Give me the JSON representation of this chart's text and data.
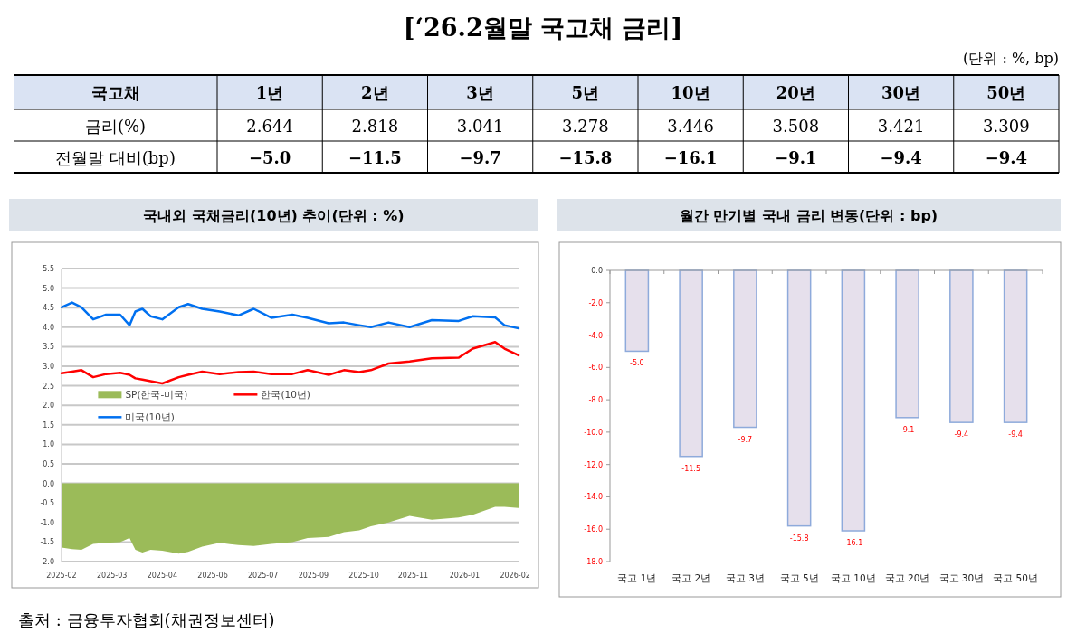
{
  "chart_data": [
    {
      "type": "other",
      "title": "[‘26.2월말 국고채 금리]",
      "subtitle": "(단위 : %, bp)",
      "xlabel": "국고채",
      "categories": [
        "1년",
        "2년",
        "3년",
        "5년",
        "10년",
        "20년",
        "30년",
        "50년"
      ],
      "series": [
        {
          "name": "금리(%)",
          "values": [
            2.644,
            2.818,
            3.041,
            3.278,
            3.446,
            3.508,
            3.421,
            3.309
          ],
          "value_labels": [
            "2.644",
            "2.818",
            "3.041",
            "3.278",
            "3.446",
            "3.508",
            "3.421",
            "3.309"
          ]
        },
        {
          "name": "전월말 대비(bp)",
          "values": [
            -5.0,
            -11.5,
            -9.7,
            -15.8,
            -16.1,
            -9.1,
            -9.4,
            -9.4
          ],
          "value_labels": [
            "−5.0",
            "−11.5",
            "−9.7",
            "−15.8",
            "−16.1",
            "−9.1",
            "−9.4",
            "−9.4"
          ]
        }
      ],
      "annotations": [
        "출처 : 금융투자협회(채권정보센터)"
      ]
    },
    {
      "type": "line",
      "title": "국내외 국채금리(10년) 추이(단위 : %)",
      "x": [
        "2025-02-03",
        "2025-02-12",
        "2025-02-20",
        "2025-03-02",
        "2025-03-13",
        "2025-03-25",
        "2025-04-02",
        "2025-04-07",
        "2025-04-13",
        "2025-04-20",
        "2025-04-30",
        "2025-05-14",
        "2025-05-22",
        "2025-06-03",
        "2025-06-18",
        "2025-07-04",
        "2025-07-17",
        "2025-08-01",
        "2025-08-19",
        "2025-09-01",
        "2025-09-19",
        "2025-10-02",
        "2025-10-15",
        "2025-10-25",
        "2025-11-09",
        "2025-11-27",
        "2025-12-16",
        "2026-01-08",
        "2026-01-20",
        "2026-02-08",
        "2026-02-16",
        "2026-02-28"
      ],
      "series": [
        {
          "name": "SP(한국-미국)",
          "type": "area",
          "color": "#9bbb59",
          "values": [
            -1.64,
            -1.68,
            -1.7,
            -1.55,
            -1.52,
            -1.5,
            -1.4,
            -1.7,
            -1.77,
            -1.7,
            -1.72,
            -1.8,
            -1.75,
            -1.62,
            -1.52,
            -1.58,
            -1.6,
            -1.55,
            -1.5,
            -1.4,
            -1.37,
            -1.25,
            -1.2,
            -1.1,
            -1.0,
            -0.83,
            -0.93,
            -0.87,
            -0.8,
            -0.6,
            -0.6,
            -0.63
          ]
        },
        {
          "name": "한국(10년)",
          "type": "line",
          "color": "#ff0000",
          "values": [
            2.82,
            2.86,
            2.9,
            2.72,
            2.8,
            2.83,
            2.78,
            2.69,
            2.66,
            2.62,
            2.56,
            2.72,
            2.78,
            2.86,
            2.8,
            2.85,
            2.86,
            2.8,
            2.8,
            2.9,
            2.78,
            2.9,
            2.85,
            2.9,
            3.07,
            3.12,
            3.2,
            3.22,
            3.45,
            3.62,
            3.45,
            3.28
          ]
        },
        {
          "name": "미국(10년)",
          "type": "line",
          "color": "#0070f0",
          "values": [
            4.51,
            4.63,
            4.51,
            4.2,
            4.32,
            4.32,
            4.05,
            4.4,
            4.47,
            4.28,
            4.2,
            4.51,
            4.59,
            4.47,
            4.4,
            4.3,
            4.47,
            4.24,
            4.32,
            4.24,
            4.1,
            4.12,
            4.05,
            4.0,
            4.12,
            4.0,
            4.18,
            4.16,
            4.28,
            4.25,
            4.05,
            3.97
          ]
        }
      ],
      "xlim": [
        "2025-02-03",
        "2026-02-28"
      ],
      "xticks": [
        {
          "value": "2025-02-03",
          "label": "2025-02"
        },
        {
          "value": "2025-03-18",
          "label": "2025-03"
        },
        {
          "value": "2025-04-30",
          "label": "2025-04"
        },
        {
          "value": "2025-06-12",
          "label": "2025-06"
        },
        {
          "value": "2025-07-25",
          "label": "2025-07"
        },
        {
          "value": "2025-09-06",
          "label": "2025-09"
        },
        {
          "value": "2025-10-19",
          "label": "2025-10"
        },
        {
          "value": "2025-11-30",
          "label": "2025-11"
        },
        {
          "value": "2026-01-13",
          "label": "2026-01"
        },
        {
          "value": "2026-02-25",
          "label": "2026-02"
        }
      ],
      "ylim": [
        -2,
        5.5
      ],
      "yticks": [
        {
          "value": -2,
          "label": "-2.0"
        },
        {
          "value": -1.5,
          "label": "-1.5"
        },
        {
          "value": -1,
          "label": "-1.0"
        },
        {
          "value": -0.5,
          "label": "-0.5"
        },
        {
          "value": 0,
          "label": "0.0"
        },
        {
          "value": 0.5,
          "label": "0.5"
        },
        {
          "value": 1,
          "label": "1.0"
        },
        {
          "value": 1.5,
          "label": "1.5"
        },
        {
          "value": 2,
          "label": "2.0"
        },
        {
          "value": 2.5,
          "label": "2.5"
        },
        {
          "value": 3,
          "label": "3.0"
        },
        {
          "value": 3.5,
          "label": "3.5"
        },
        {
          "value": 4,
          "label": "4.0"
        },
        {
          "value": 4.5,
          "label": "4.5"
        },
        {
          "value": 5,
          "label": "5.0"
        },
        {
          "value": 5.5,
          "label": "5.5"
        }
      ],
      "grid": "y",
      "legend": "left"
    },
    {
      "type": "bar",
      "title": "월간 만기별 국내 금리 변동(단위 : bp)",
      "categories": [
        "국고 1년",
        "국고 2년",
        "국고 3년",
        "국고 5년",
        "국고 10년",
        "국고 20년",
        "국고 30년",
        "국고 50년"
      ],
      "values": [
        -5.0,
        -11.5,
        -9.7,
        -15.8,
        -16.1,
        -9.1,
        -9.4,
        -9.4
      ],
      "value_labels": [
        "-5.0",
        "-11.5",
        "-9.7",
        "-15.8",
        "-16.1",
        "-9.1",
        "-9.4",
        "-9.4"
      ],
      "color": "#e6e0ec",
      "ylim": [
        -18,
        0
      ],
      "yticks": [
        {
          "value": -18,
          "label": "-18.0"
        },
        {
          "value": -16,
          "label": "-16.0"
        },
        {
          "value": -14,
          "label": "-14.0"
        },
        {
          "value": -12,
          "label": "-12.0"
        },
        {
          "value": -10,
          "label": "-10.0"
        },
        {
          "value": -8,
          "label": "-8.0"
        },
        {
          "value": -6,
          "label": "-6.0"
        },
        {
          "value": -4,
          "label": "-4.0"
        },
        {
          "value": -2,
          "label": "-2.0"
        },
        {
          "value": 0,
          "label": "0.0"
        }
      ]
    }
  ]
}
